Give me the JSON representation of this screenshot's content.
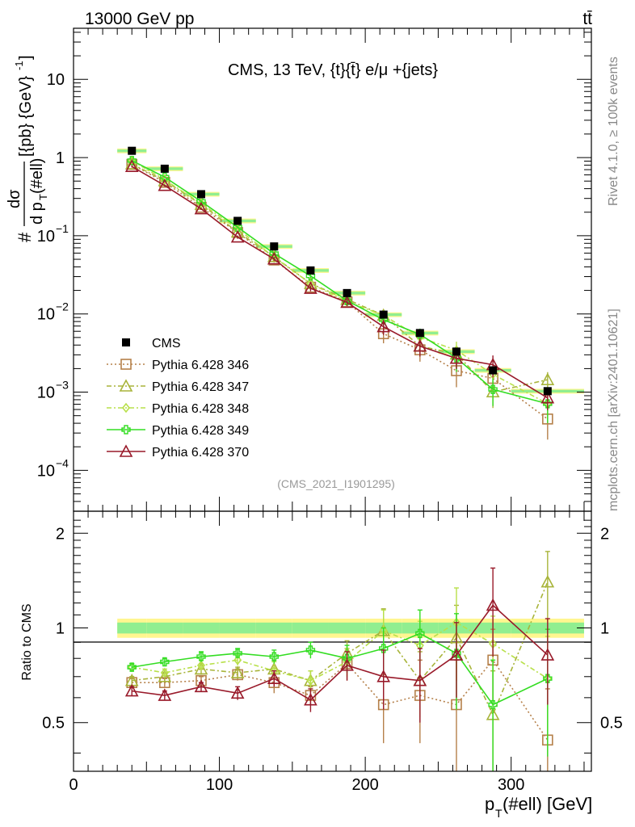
{
  "header": {
    "left": "13000 GeV pp",
    "right": "tt̄"
  },
  "side_labels": {
    "rivet": "Rivet 4.1.0, ≥ 100k events",
    "mcplots": "mcplots.cern.ch [arXiv:2401.10621]"
  },
  "chart_data": {
    "type": "scatter",
    "title": "CMS, 13 TeV, {t}{t̄} e/μ +{jets}",
    "analysis_label": "(CMS_2021_I1901295)",
    "xlabel": "p_T(#ell) [GeV]",
    "ylabel": "# dσ / d p_T(#ell) [{pb} {GeV}^-1]",
    "ratio_ylabel": "Ratio to CMS",
    "xlim": [
      0,
      355
    ],
    "ylim": [
      3e-05,
      45
    ],
    "yscale": "log",
    "ratio_ylim": [
      0.35,
      2.35
    ],
    "x_ticks": [
      "0",
      "100",
      "200",
      "300"
    ],
    "y_ticks": [
      {
        "value": 0.0001,
        "mant": "10",
        "exp": "−4"
      },
      {
        "value": 0.001,
        "mant": "10",
        "exp": "−3"
      },
      {
        "value": 0.01,
        "mant": "10",
        "exp": "−2"
      },
      {
        "value": 0.1,
        "mant": "10",
        "exp": "−1"
      },
      {
        "value": 1,
        "mant": "1",
        "exp": ""
      },
      {
        "value": 10,
        "mant": "10",
        "exp": ""
      }
    ],
    "ratio_ticks": [
      {
        "value": 0.5,
        "label": "0.5"
      },
      {
        "value": 1,
        "label": "1"
      },
      {
        "value": 2,
        "label": "2"
      }
    ],
    "x": [
      40,
      62.5,
      87.5,
      112.5,
      137.5,
      162.5,
      187.5,
      212.5,
      237.5,
      262.5,
      287.5,
      325
    ],
    "x_edges": [
      30,
      50,
      75,
      100,
      125,
      150,
      175,
      200,
      225,
      250,
      275,
      300,
      350
    ],
    "data": {
      "name": "CMS",
      "values": [
        1.22,
        0.72,
        0.34,
        0.155,
        0.073,
        0.036,
        0.0185,
        0.0098,
        0.0057,
        0.0033,
        0.0019,
        0.00103
      ],
      "rel_err": [
        0.06,
        0.06,
        0.06,
        0.06,
        0.06,
        0.06,
        0.06,
        0.07,
        0.07,
        0.08,
        0.09,
        0.09
      ]
    },
    "series": [
      {
        "name": "Pythia 6.428 346",
        "color": "#b5804a",
        "dash": "2,3",
        "marker": "square",
        "ratio": [
          0.67,
          0.67,
          0.68,
          0.71,
          0.67,
          0.61,
          0.77,
          0.57,
          0.61,
          0.57,
          0.79,
          0.44
        ],
        "ratio_err": [
          0.02,
          0.02,
          0.02,
          0.03,
          0.05,
          0.04,
          0.09,
          0.14,
          0.18,
          0.22,
          0.2,
          0.2
        ]
      },
      {
        "name": "Pythia 6.428 347",
        "color": "#a8b43a",
        "dash": "6,3,2,3",
        "marker": "triangle",
        "ratio": [
          0.68,
          0.7,
          0.74,
          0.72,
          0.74,
          0.68,
          0.83,
          0.98,
          0.68,
          0.93,
          0.53,
          1.4
        ],
        "ratio_err": [
          0.02,
          0.02,
          0.03,
          0.03,
          0.05,
          0.05,
          0.08,
          0.17,
          0.16,
          0.25,
          0.2,
          0.35
        ]
      },
      {
        "name": "Pythia 6.428 348",
        "color": "#b8e04a",
        "dash": "6,3,2,3",
        "marker": "diamond",
        "ratio": [
          0.75,
          0.72,
          0.76,
          0.79,
          0.73,
          0.68,
          0.78,
          0.98,
          0.88,
          1.04,
          0.89,
          0.69
        ],
        "ratio_err": [
          0.02,
          0.02,
          0.03,
          0.03,
          0.05,
          0.05,
          0.08,
          0.16,
          0.17,
          0.3,
          0.2,
          0.25
        ]
      },
      {
        "name": "Pythia 6.428 349",
        "color": "#33dd22",
        "dash": "",
        "marker": "cross",
        "ratio": [
          0.75,
          0.78,
          0.81,
          0.83,
          0.81,
          0.85,
          0.8,
          0.86,
          0.96,
          0.83,
          0.57,
          0.69
        ],
        "ratio_err": [
          0.02,
          0.02,
          0.03,
          0.03,
          0.04,
          0.05,
          0.08,
          0.14,
          0.18,
          0.28,
          0.22,
          0.3
        ]
      },
      {
        "name": "Pythia 6.428 370",
        "color": "#991a2a",
        "dash": "",
        "marker": "triangle",
        "ratio": [
          0.63,
          0.61,
          0.65,
          0.62,
          0.69,
          0.59,
          0.76,
          0.7,
          0.68,
          0.82,
          1.18,
          0.82
        ],
        "ratio_err": [
          0.02,
          0.02,
          0.02,
          0.03,
          0.04,
          0.05,
          0.08,
          0.15,
          0.18,
          0.22,
          0.37,
          0.25
        ]
      }
    ],
    "bands": {
      "outer_color": "#fff68f",
      "inner_color": "#90ee90",
      "outer_rel": [
        0.07,
        0.07,
        0.07,
        0.07,
        0.07,
        0.07,
        0.07,
        0.07,
        0.07,
        0.07,
        0.07,
        0.07
      ],
      "inner_rel": [
        0.04,
        0.04,
        0.04,
        0.04,
        0.04,
        0.04,
        0.04,
        0.04,
        0.04,
        0.04,
        0.04,
        0.04
      ]
    }
  }
}
